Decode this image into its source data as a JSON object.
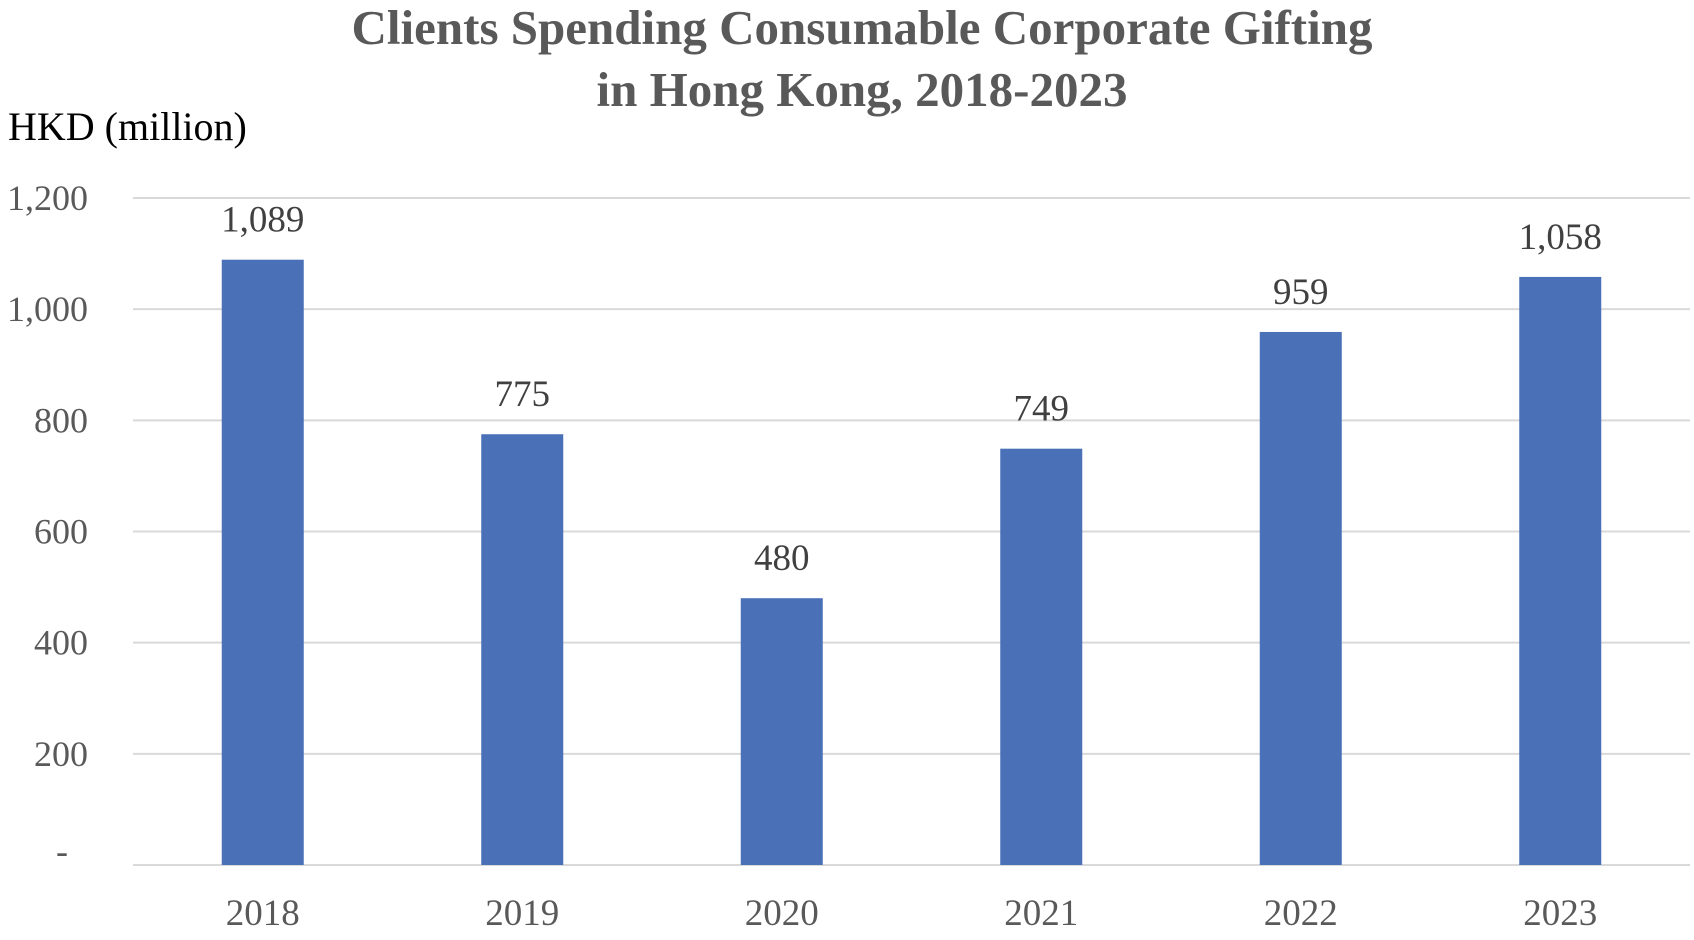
{
  "chart_data": {
    "type": "bar",
    "title_lines": [
      "Clients Spending Consumable Corporate Gifting",
      "in Hong Kong, 2018-2023"
    ],
    "ylabel": "HKD (million)",
    "xlabel": "",
    "categories": [
      "2018",
      "2019",
      "2020",
      "2021",
      "2022",
      "2023"
    ],
    "values": [
      1089,
      775,
      480,
      749,
      959,
      1058
    ],
    "data_labels": [
      "1,089",
      "775",
      "480",
      "749",
      "959",
      "1,058"
    ],
    "ylim": [
      0,
      1200
    ],
    "y_ticks": [
      0,
      200,
      400,
      600,
      800,
      1000,
      1200
    ],
    "y_tick_labels": [
      "-",
      "200",
      "400",
      "600",
      "800",
      "1,000",
      "1,200"
    ],
    "grid": true,
    "legend": "none",
    "colors": {
      "bar": "#4a71b8",
      "grid": "#d9d9d9",
      "title": "#595959",
      "axis_text": "#595959"
    }
  }
}
